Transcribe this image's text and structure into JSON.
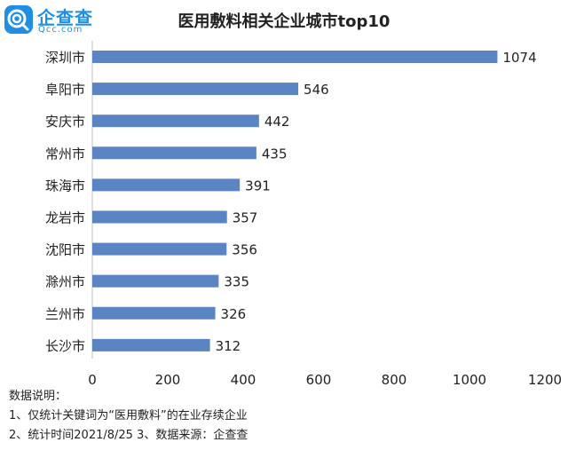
{
  "logo": {
    "name": "企查查",
    "domain": "Qcc.com"
  },
  "notes": {
    "heading": "数据说明：",
    "line1": "1、仅统计关键词为“医用敷料”的在业存续企业",
    "line2": "2、统计时间2021/8/25    3、数据来源：企查查"
  },
  "colors": {
    "bar": "#5b84c2",
    "brand": "#1f8fe5"
  },
  "chart_data": {
    "type": "bar",
    "orientation": "horizontal",
    "title": "医用敷料相关企业城市top10",
    "categories": [
      "深圳市",
      "阜阳市",
      "安庆市",
      "常州市",
      "珠海市",
      "龙岩市",
      "沈阳市",
      "滁州市",
      "兰州市",
      "长沙市"
    ],
    "values": [
      1074,
      546,
      442,
      435,
      391,
      357,
      356,
      335,
      326,
      312
    ],
    "xlim": [
      0,
      1200
    ],
    "xticks": [
      "0",
      "200",
      "400",
      "600",
      "800",
      "1000",
      "1200"
    ],
    "grid": false,
    "data_labels": true
  }
}
